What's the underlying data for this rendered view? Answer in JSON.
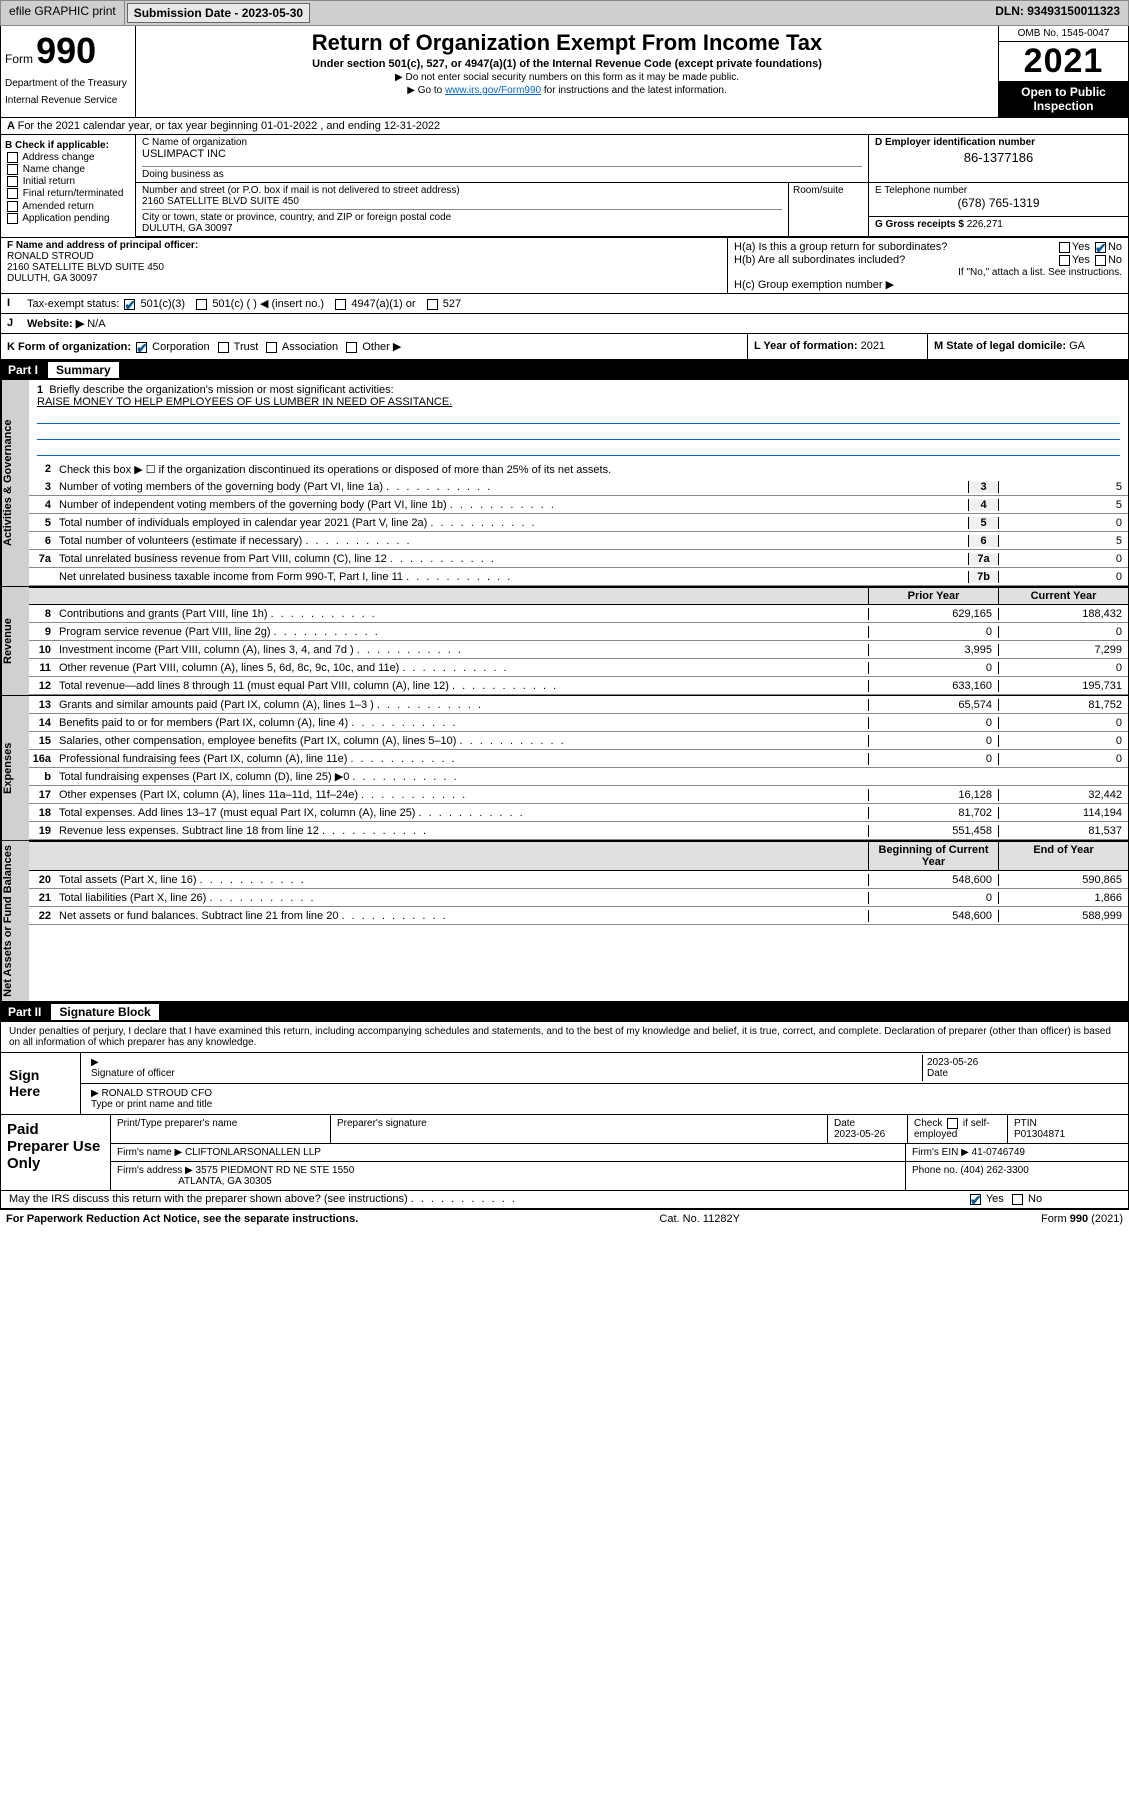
{
  "topbar": {
    "efile": "efile GRAPHIC print",
    "submission_label": "Submission Date - 2023-05-30",
    "dln": "DLN: 93493150011323"
  },
  "header": {
    "form_pre": "Form",
    "form_num": "990",
    "dept": "Department of the Treasury",
    "irs": "Internal Revenue Service",
    "title": "Return of Organization Exempt From Income Tax",
    "sub": "Under section 501(c), 527, or 4947(a)(1) of the Internal Revenue Code (except private foundations)",
    "arrow1": "▶ Do not enter social security numbers on this form as it may be made public.",
    "arrow2_pre": "▶ Go to ",
    "arrow2_link": "www.irs.gov/Form990",
    "arrow2_post": " for instructions and the latest information.",
    "omb": "OMB No. 1545-0047",
    "year": "2021",
    "open": "Open to Public Inspection"
  },
  "rowA": "For the 2021 calendar year, or tax year beginning 01-01-2022   , and ending 12-31-2022",
  "colB": {
    "title": "B Check if applicable:",
    "items": [
      "Address change",
      "Name change",
      "Initial return",
      "Final return/terminated",
      "Amended return",
      "Application pending"
    ]
  },
  "colC": {
    "name_label": "C Name of organization",
    "name": "USLIMPACT INC",
    "dba_label": "Doing business as",
    "addr_label": "Number and street (or P.O. box if mail is not delivered to street address)",
    "addr": "2160 SATELLITE BLVD SUITE 450",
    "room_label": "Room/suite",
    "city_label": "City or town, state or province, country, and ZIP or foreign postal code",
    "city": "DULUTH, GA  30097"
  },
  "colD": {
    "label": "D Employer identification number",
    "val": "86-1377186"
  },
  "colE": {
    "label": "E Telephone number",
    "val": "(678) 765-1319"
  },
  "colG": {
    "label": "G Gross receipts $",
    "val": "226,271"
  },
  "colF": {
    "label": "F Name and address of principal officer:",
    "name": "RONALD STROUD",
    "addr1": "2160 SATELLITE BLVD SUITE 450",
    "addr2": "DULUTH, GA  30097"
  },
  "colH": {
    "a": "H(a)  Is this a group return for subordinates?",
    "a_yes": "Yes",
    "a_no": "No",
    "b": "H(b)  Are all subordinates included?",
    "b_yes": "Yes",
    "b_no": "No",
    "note": "If \"No,\" attach a list. See instructions.",
    "c": "H(c)  Group exemption number ▶"
  },
  "rowI": {
    "label": "Tax-exempt status:",
    "opts": [
      "501(c)(3)",
      "501(c) (  ) ◀ (insert no.)",
      "4947(a)(1) or",
      "527"
    ]
  },
  "rowJ": {
    "label": "Website: ▶",
    "val": "N/A"
  },
  "rowK": {
    "label": "K Form of organization:",
    "opts": [
      "Corporation",
      "Trust",
      "Association",
      "Other ▶"
    ]
  },
  "rowL": {
    "label": "L Year of formation:",
    "val": "2021"
  },
  "rowM": {
    "label": "M State of legal domicile:",
    "val": "GA"
  },
  "part1": {
    "num": "Part I",
    "title": "Summary"
  },
  "mission": {
    "label": "Briefly describe the organization's mission or most significant activities:",
    "text": "RAISE MONEY TO HELP EMPLOYEES OF US LUMBER IN NEED OF ASSITANCE."
  },
  "line2": "Check this box ▶ ☐  if the organization discontinued its operations or disposed of more than 25% of its net assets.",
  "summary_lines": [
    {
      "n": "3",
      "d": "Number of voting members of the governing body (Part VI, line 1a)",
      "box": "3",
      "v": "5"
    },
    {
      "n": "4",
      "d": "Number of independent voting members of the governing body (Part VI, line 1b)",
      "box": "4",
      "v": "5"
    },
    {
      "n": "5",
      "d": "Total number of individuals employed in calendar year 2021 (Part V, line 2a)",
      "box": "5",
      "v": "0"
    },
    {
      "n": "6",
      "d": "Total number of volunteers (estimate if necessary)",
      "box": "6",
      "v": "5"
    },
    {
      "n": "7a",
      "d": "Total unrelated business revenue from Part VIII, column (C), line 12",
      "box": "7a",
      "v": "0"
    },
    {
      "n": "",
      "d": "Net unrelated business taxable income from Form 990-T, Part I, line 11",
      "box": "7b",
      "v": "0"
    }
  ],
  "col_hdr": {
    "prior": "Prior Year",
    "current": "Current Year"
  },
  "revenue": [
    {
      "n": "8",
      "d": "Contributions and grants (Part VIII, line 1h)",
      "p": "629,165",
      "c": "188,432"
    },
    {
      "n": "9",
      "d": "Program service revenue (Part VIII, line 2g)",
      "p": "0",
      "c": "0"
    },
    {
      "n": "10",
      "d": "Investment income (Part VIII, column (A), lines 3, 4, and 7d )",
      "p": "3,995",
      "c": "7,299"
    },
    {
      "n": "11",
      "d": "Other revenue (Part VIII, column (A), lines 5, 6d, 8c, 9c, 10c, and 11e)",
      "p": "0",
      "c": "0"
    },
    {
      "n": "12",
      "d": "Total revenue—add lines 8 through 11 (must equal Part VIII, column (A), line 12)",
      "p": "633,160",
      "c": "195,731"
    }
  ],
  "expenses": [
    {
      "n": "13",
      "d": "Grants and similar amounts paid (Part IX, column (A), lines 1–3 )",
      "p": "65,574",
      "c": "81,752"
    },
    {
      "n": "14",
      "d": "Benefits paid to or for members (Part IX, column (A), line 4)",
      "p": "0",
      "c": "0"
    },
    {
      "n": "15",
      "d": "Salaries, other compensation, employee benefits (Part IX, column (A), lines 5–10)",
      "p": "0",
      "c": "0"
    },
    {
      "n": "16a",
      "d": "Professional fundraising fees (Part IX, column (A), line 11e)",
      "p": "0",
      "c": "0"
    },
    {
      "n": "b",
      "d": "Total fundraising expenses (Part IX, column (D), line 25) ▶0",
      "p": "",
      "c": "",
      "shaded": true
    },
    {
      "n": "17",
      "d": "Other expenses (Part IX, column (A), lines 11a–11d, 11f–24e)",
      "p": "16,128",
      "c": "32,442"
    },
    {
      "n": "18",
      "d": "Total expenses. Add lines 13–17 (must equal Part IX, column (A), line 25)",
      "p": "81,702",
      "c": "114,194"
    },
    {
      "n": "19",
      "d": "Revenue less expenses. Subtract line 18 from line 12",
      "p": "551,458",
      "c": "81,537"
    }
  ],
  "balance_hdr": {
    "beg": "Beginning of Current Year",
    "end": "End of Year"
  },
  "balances": [
    {
      "n": "20",
      "d": "Total assets (Part X, line 16)",
      "p": "548,600",
      "c": "590,865"
    },
    {
      "n": "21",
      "d": "Total liabilities (Part X, line 26)",
      "p": "0",
      "c": "1,866"
    },
    {
      "n": "22",
      "d": "Net assets or fund balances. Subtract line 21 from line 20",
      "p": "548,600",
      "c": "588,999"
    }
  ],
  "vtabs": {
    "gov": "Activities & Governance",
    "rev": "Revenue",
    "exp": "Expenses",
    "net": "Net Assets or Fund Balances"
  },
  "part2": {
    "num": "Part II",
    "title": "Signature Block"
  },
  "sig_decl": "Under penalties of perjury, I declare that I have examined this return, including accompanying schedules and statements, and to the best of my knowledge and belief, it is true, correct, and complete. Declaration of preparer (other than officer) is based on all information of which preparer has any knowledge.",
  "sign": {
    "here": "Sign Here",
    "sig_label": "Signature of officer",
    "date_label": "Date",
    "date": "2023-05-26",
    "name": "RONALD STROUD CFO",
    "name_label": "Type or print name and title"
  },
  "paid": {
    "title": "Paid Preparer Use Only",
    "h1": "Print/Type preparer's name",
    "h2": "Preparer's signature",
    "h3": "Date",
    "date": "2023-05-26",
    "h4_pre": "Check",
    "h4_post": "if self-employed",
    "h5": "PTIN",
    "ptin": "P01304871",
    "firm_label": "Firm's name    ▶",
    "firm": "CLIFTONLARSONALLEN LLP",
    "ein_label": "Firm's EIN ▶",
    "ein": "41-0746749",
    "addr_label": "Firm's address ▶",
    "addr1": "3575 PIEDMONT RD NE STE 1550",
    "addr2": "ATLANTA, GA  30305",
    "phone_label": "Phone no.",
    "phone": "(404) 262-3300"
  },
  "may_discuss": "May the IRS discuss this return with the preparer shown above? (see instructions)",
  "may_yes": "Yes",
  "may_no": "No",
  "footer": {
    "pra": "For Paperwork Reduction Act Notice, see the separate instructions.",
    "cat": "Cat. No. 11282Y",
    "form": "Form 990 (2021)"
  }
}
